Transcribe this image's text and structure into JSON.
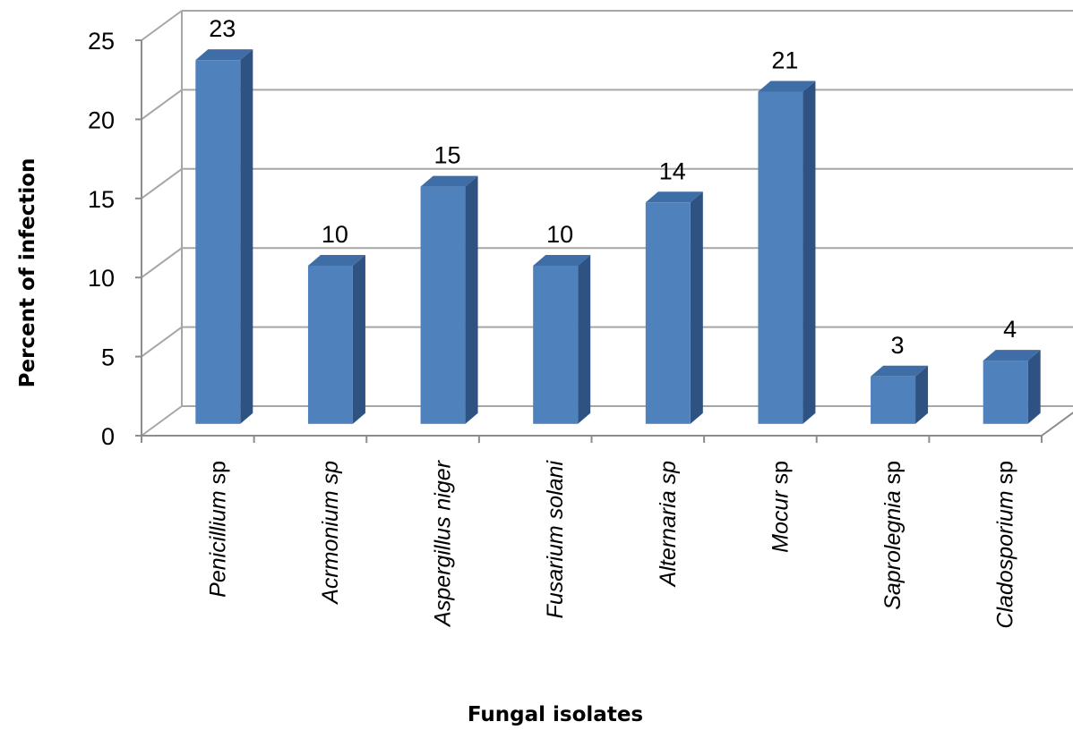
{
  "chart_data": {
    "type": "bar",
    "title": "",
    "xlabel": "Fungal isolates",
    "ylabel": "Percent of infection",
    "ylim": [
      0,
      25
    ],
    "yticks": [
      0,
      5,
      10,
      15,
      20,
      25
    ],
    "grid": true,
    "categories": [
      {
        "italic": "Penicillium",
        "plain": " sp"
      },
      {
        "italic": "Acrmonium sp",
        "plain": ""
      },
      {
        "italic": "Aspergillus niger",
        "plain": ""
      },
      {
        "italic": "Fusarium solani",
        "plain": ""
      },
      {
        "italic": "Alternaria sp",
        "plain": ""
      },
      {
        "italic": "Mocur",
        "plain": " sp"
      },
      {
        "italic": "Saprolegnia",
        "plain": " sp"
      },
      {
        "italic": "Cladosporium",
        "plain": " sp"
      }
    ],
    "values": [
      23,
      10,
      15,
      10,
      14,
      21,
      3,
      4
    ],
    "data_labels": [
      "23",
      "10",
      "15",
      "10",
      "14",
      "21",
      "3",
      "4"
    ],
    "colors": {
      "bar_front": "#4f81bd",
      "bar_side": "#2e5281",
      "bar_top": "#3f6ea6",
      "grid": "#a6a6a6",
      "axis": "#8c8c8c"
    }
  }
}
